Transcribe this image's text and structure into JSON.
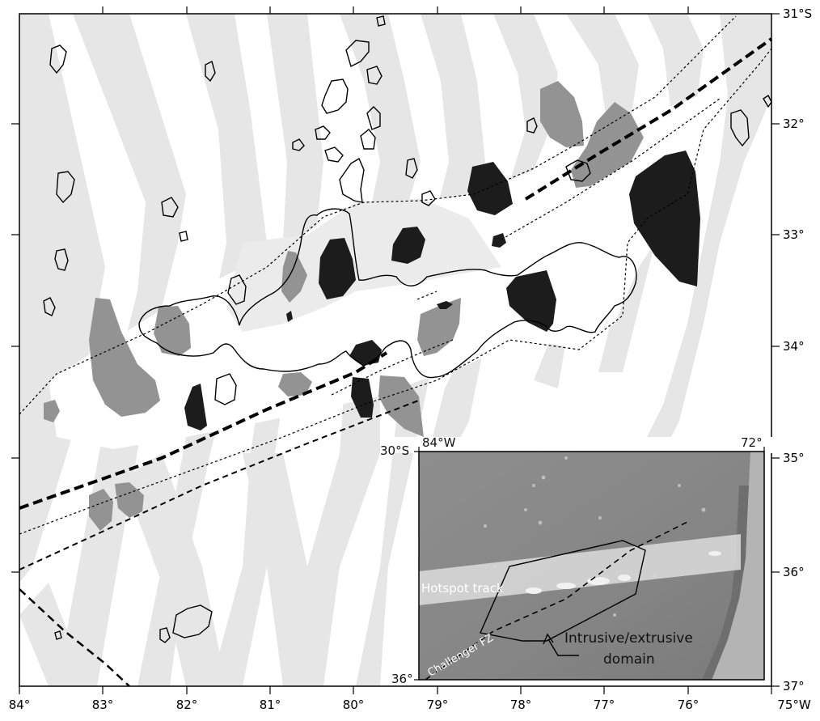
{
  "map": {
    "bottom_axis_labels": [
      "84°",
      "83°",
      "82°",
      "81°",
      "80°",
      "79°",
      "78°",
      "77°",
      "76°",
      "75°W"
    ],
    "right_axis_labels": [
      "31°S",
      "32°",
      "33°",
      "34°",
      "35°",
      "36°",
      "37°"
    ],
    "colors": {
      "anomaly_band": "#e6e6e6",
      "grey_body": "#939393",
      "dark_body": "#1c1c1c",
      "outline": "#000000"
    }
  },
  "inset": {
    "corner_top_left_lat": "30°S",
    "corner_top_left_lon": "84°W",
    "corner_top_right_lon": "72°",
    "corner_bottom_left_lat": "36°",
    "hotspot_track_label": "Hotspot track",
    "fracture_zone_label": "Challenger FZ",
    "domain_label_line1": "Intrusive/extrusive",
    "domain_label_line2": "domain",
    "colors": {
      "relief": "#8a8a8a",
      "track": "#d8d8d8"
    }
  }
}
